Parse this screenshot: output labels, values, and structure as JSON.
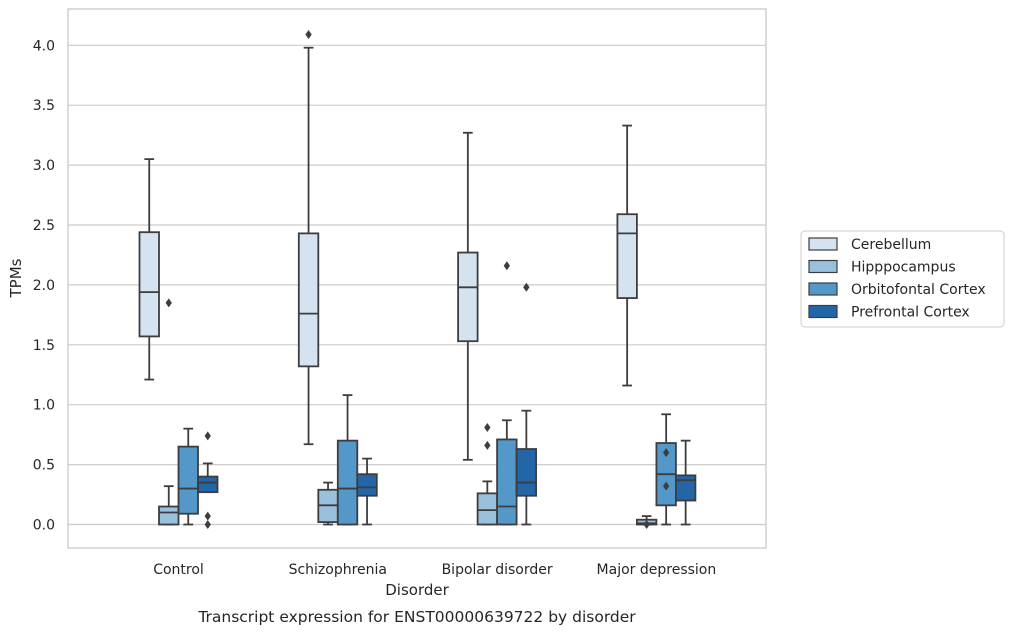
{
  "chart_data": {
    "type": "box",
    "xlabel": "Disorder",
    "ylabel": "TPMs",
    "caption": "Transcript expression for ENST00000639722 by disorder",
    "ylim": [
      -0.2,
      4.3
    ],
    "yticks": [
      0.0,
      0.5,
      1.0,
      1.5,
      2.0,
      2.5,
      3.0,
      3.5,
      4.0
    ],
    "ytick_labels": [
      "0.0",
      "0.5",
      "1.0",
      "1.5",
      "2.0",
      "2.5",
      "3.0",
      "3.5",
      "4.0"
    ],
    "grid": true,
    "legend_position": "right",
    "categories": [
      "Control",
      "Schizophrenia",
      "Bipolar disorder",
      "Major depression"
    ],
    "series": [
      {
        "name": "Cerebellum",
        "color": "#d5e3f1",
        "boxes": [
          {
            "whislo": 1.21,
            "q1": 1.57,
            "med": 1.94,
            "q3": 2.44,
            "whishi": 3.05,
            "fliers": []
          },
          {
            "whislo": 0.67,
            "q1": 1.32,
            "med": 1.76,
            "q3": 2.43,
            "whishi": 3.98,
            "fliers": [
              4.09
            ]
          },
          {
            "whislo": 0.54,
            "q1": 1.53,
            "med": 1.98,
            "q3": 2.27,
            "whishi": 3.27,
            "fliers": []
          },
          {
            "whislo": 1.16,
            "q1": 1.89,
            "med": 2.43,
            "q3": 2.59,
            "whishi": 3.33,
            "fliers": []
          }
        ]
      },
      {
        "name": "Hipppocampus",
        "color": "#99c0dc",
        "boxes": [
          {
            "whislo": 0.0,
            "q1": 0.0,
            "med": 0.1,
            "q3": 0.15,
            "whishi": 0.32,
            "fliers": [
              1.85
            ]
          },
          {
            "whislo": 0.0,
            "q1": 0.02,
            "med": 0.16,
            "q3": 0.29,
            "whishi": 0.35,
            "fliers": []
          },
          {
            "whislo": 0.0,
            "q1": 0.0,
            "med": 0.12,
            "q3": 0.26,
            "whishi": 0.36,
            "fliers": [
              0.66,
              0.81
            ]
          },
          {
            "whislo": 0.0,
            "q1": 0.0,
            "med": 0.01,
            "q3": 0.04,
            "whishi": 0.07,
            "fliers": [
              0.0
            ]
          }
        ]
      },
      {
        "name": "Orbitofontal Cortex",
        "color": "#5398c8",
        "boxes": [
          {
            "whislo": 0.0,
            "q1": 0.09,
            "med": 0.3,
            "q3": 0.65,
            "whishi": 0.8,
            "fliers": []
          },
          {
            "whislo": 0.0,
            "q1": 0.0,
            "med": 0.3,
            "q3": 0.7,
            "whishi": 1.08,
            "fliers": []
          },
          {
            "whislo": 0.0,
            "q1": 0.0,
            "med": 0.15,
            "q3": 0.71,
            "whishi": 0.87,
            "fliers": [
              2.16
            ]
          },
          {
            "whislo": 0.0,
            "q1": 0.16,
            "med": 0.42,
            "q3": 0.68,
            "whishi": 0.92,
            "fliers": [
              0.32,
              0.6
            ]
          }
        ]
      },
      {
        "name": "Prefrontal Cortex",
        "color": "#2366a8",
        "boxes": [
          {
            "whislo": 0.27,
            "q1": 0.27,
            "med": 0.35,
            "q3": 0.4,
            "whishi": 0.51,
            "fliers": [
              0.0,
              0.07,
              0.74
            ]
          },
          {
            "whislo": 0.0,
            "q1": 0.24,
            "med": 0.31,
            "q3": 0.42,
            "whishi": 0.55,
            "fliers": []
          },
          {
            "whislo": 0.0,
            "q1": 0.24,
            "med": 0.35,
            "q3": 0.63,
            "whishi": 0.95,
            "fliers": [
              1.98
            ]
          },
          {
            "whislo": 0.0,
            "q1": 0.2,
            "med": 0.37,
            "q3": 0.41,
            "whishi": 0.7,
            "fliers": []
          }
        ]
      }
    ]
  }
}
